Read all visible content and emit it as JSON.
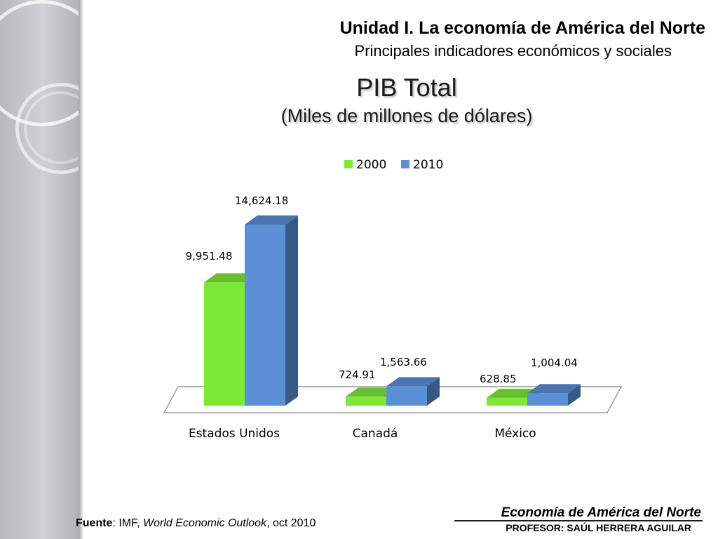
{
  "header": {
    "title": "Unidad I. La economía de América del Norte",
    "subtitle": "Principales indicadores económicos y sociales"
  },
  "chart_data": {
    "type": "bar",
    "title": "PIB Total",
    "subtitle": "(Miles de millones de dólares)",
    "categories": [
      "Estados Unidos",
      "Canadá",
      "México"
    ],
    "series": [
      {
        "name": "2000",
        "values": [
          9951.48,
          724.91,
          628.85
        ],
        "labels": [
          "9,951.48",
          "724.91",
          "628.85"
        ],
        "color": "#7ee839"
      },
      {
        "name": "2010",
        "values": [
          14624.18,
          1563.66,
          1004.04
        ],
        "labels": [
          "14,624.18",
          "1,563.66",
          "1,004.04"
        ],
        "color": "#5b8fd6"
      }
    ],
    "legend": "top",
    "grid": false,
    "style": "3d-clustered-column"
  },
  "footer": {
    "source_label": "Fuente",
    "source_sep": ": IMF, ",
    "source_title": "World Economic Outlook",
    "source_date": ", oct 2010",
    "course": "Economía de América del Norte",
    "professor": "PROFESOR: SAÚL HERRERA AGUILAR"
  }
}
